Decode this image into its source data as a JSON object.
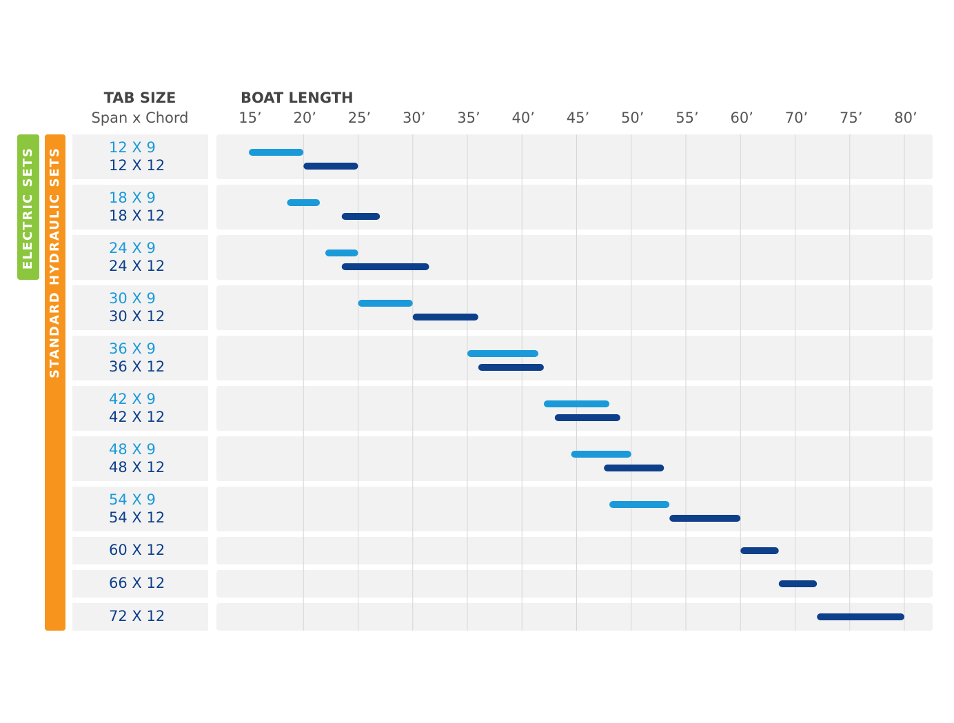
{
  "chart_data": {
    "type": "range-bar",
    "header_left": "TAB SIZE",
    "subheader_left": "Span x Chord",
    "header_right": "BOAT LENGTH",
    "groups": [
      "ELECTRIC SETS",
      "STANDARD HYDRAULIC SETS"
    ],
    "group_colors": [
      "#8cc63f",
      "#f7941d"
    ],
    "xlim": [
      15,
      80
    ],
    "xticks": [
      {
        "value": 15,
        "label": "15’"
      },
      {
        "value": 20,
        "label": "20’"
      },
      {
        "value": 25,
        "label": "25’"
      },
      {
        "value": 30,
        "label": "30’"
      },
      {
        "value": 35,
        "label": "35’"
      },
      {
        "value": 40,
        "label": "40’"
      },
      {
        "value": 45,
        "label": "45’"
      },
      {
        "value": 50,
        "label": "50’"
      },
      {
        "value": 55,
        "label": "55’"
      },
      {
        "value": 60,
        "label": "60’"
      },
      {
        "value": 70,
        "label": "70’"
      },
      {
        "value": 75,
        "label": "75’"
      },
      {
        "value": 80,
        "label": "80’"
      }
    ],
    "grid": true,
    "rows": [
      {
        "bars": [
          {
            "label": "12 X 9",
            "range": [
              15,
              20
            ],
            "color": "#1a9ad9"
          },
          {
            "label": "12 X 12",
            "range": [
              20,
              25
            ],
            "color": "#0d3f8a"
          }
        ]
      },
      {
        "bars": [
          {
            "label": "18 X 9",
            "range": [
              18.5,
              21.5
            ],
            "color": "#1a9ad9"
          },
          {
            "label": "18 X 12",
            "range": [
              23.5,
              27
            ],
            "color": "#0d3f8a"
          }
        ]
      },
      {
        "bars": [
          {
            "label": "24 X 9",
            "range": [
              22,
              25
            ],
            "color": "#1a9ad9"
          },
          {
            "label": "24 X 12",
            "range": [
              23.5,
              31.5
            ],
            "color": "#0d3f8a"
          }
        ]
      },
      {
        "bars": [
          {
            "label": "30 X 9",
            "range": [
              25,
              30
            ],
            "color": "#1a9ad9"
          },
          {
            "label": "30 X 12",
            "range": [
              30,
              36
            ],
            "color": "#0d3f8a"
          }
        ]
      },
      {
        "bars": [
          {
            "label": "36 X 9",
            "range": [
              35,
              41.5
            ],
            "color": "#1a9ad9"
          },
          {
            "label": "36 X 12",
            "range": [
              36,
              42
            ],
            "color": "#0d3f8a"
          }
        ]
      },
      {
        "bars": [
          {
            "label": "42 X 9",
            "range": [
              42,
              48
            ],
            "color": "#1a9ad9"
          },
          {
            "label": "42 X 12",
            "range": [
              43,
              49
            ],
            "color": "#0d3f8a"
          }
        ]
      },
      {
        "bars": [
          {
            "label": "48 X 9",
            "range": [
              44.5,
              50
            ],
            "color": "#1a9ad9"
          },
          {
            "label": "48 X 12",
            "range": [
              47.5,
              53
            ],
            "color": "#0d3f8a"
          }
        ]
      },
      {
        "bars": [
          {
            "label": "54 X 9",
            "range": [
              48,
              53.5
            ],
            "color": "#1a9ad9"
          },
          {
            "label": "54 X 12",
            "range": [
              53.5,
              60
            ],
            "color": "#0d3f8a"
          }
        ]
      },
      {
        "bars": [
          {
            "label": "60 X 12",
            "range": [
              60,
              67
            ],
            "color": "#0d3f8a"
          }
        ]
      },
      {
        "bars": [
          {
            "label": "66 X 12",
            "range": [
              67,
              72
            ],
            "color": "#0d3f8a"
          }
        ]
      },
      {
        "bars": [
          {
            "label": "72 X 12",
            "range": [
              72,
              80
            ],
            "color": "#0d3f8a"
          }
        ]
      }
    ]
  }
}
